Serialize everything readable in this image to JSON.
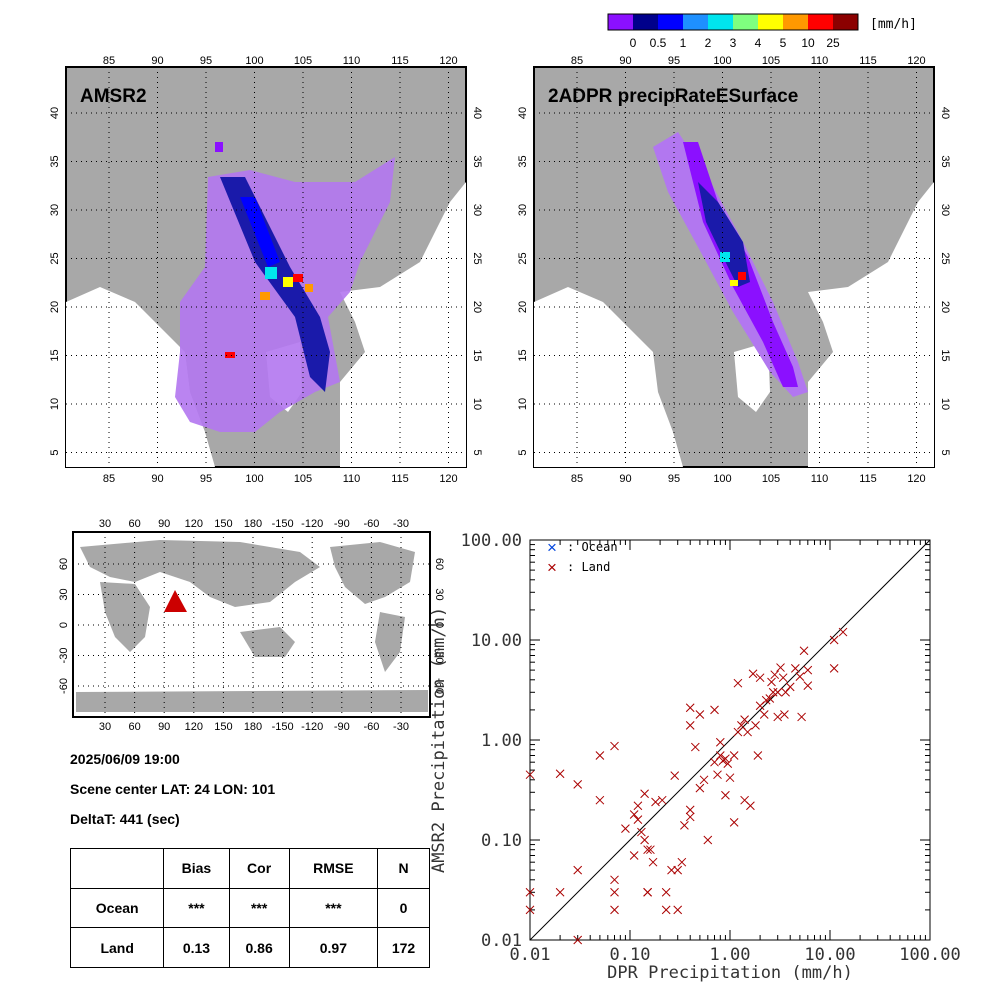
{
  "colorbar": {
    "unit": "[mm/h]",
    "labels": [
      "0",
      "0.5",
      "1",
      "2",
      "3",
      "4",
      "5",
      "10",
      "25"
    ],
    "colors": [
      "#8b10ff",
      "#00008b",
      "#0000ff",
      "#1e90ff",
      "#00e5ee",
      "#7fff7f",
      "#ffff00",
      "#ff9900",
      "#ff0000",
      "#8b0000"
    ]
  },
  "maps": [
    {
      "title": "AMSR2",
      "lon_ticks": [
        "85",
        "90",
        "95",
        "100",
        "105",
        "110",
        "115",
        "120"
      ],
      "lat_ticks": [
        "40",
        "35",
        "30",
        "25",
        "20",
        "15",
        "10",
        "5"
      ]
    },
    {
      "title": "2ADPR precipRateESurface",
      "lon_ticks": [
        "85",
        "90",
        "95",
        "100",
        "105",
        "110",
        "115",
        "120"
      ],
      "lat_ticks": [
        "40",
        "35",
        "30",
        "25",
        "20",
        "15",
        "10",
        "5"
      ]
    }
  ],
  "world_map": {
    "lon_ticks": [
      "30",
      "60",
      "90",
      "120",
      "150",
      "180",
      "-150",
      "-120",
      "-90",
      "-60",
      "-30"
    ],
    "lat_ticks": [
      "60",
      "30",
      "0",
      "-30",
      "-60"
    ],
    "marker_color": "#cc0000"
  },
  "info": {
    "datetime": "2025/06/09 19:00",
    "scene_center": "Scene center LAT: 24   LON: 101",
    "delta_t": "DeltaT:  441 (sec)"
  },
  "stats_table": {
    "headers": [
      "",
      "Bias",
      "Cor",
      "RMSE",
      "N"
    ],
    "rows": [
      [
        "Ocean",
        "***",
        "***",
        "***",
        "0"
      ],
      [
        "Land",
        "0.13",
        "0.86",
        "0.97",
        "172"
      ]
    ]
  },
  "chart_data": {
    "type": "scatter",
    "xscale": "log",
    "yscale": "log",
    "xlim": [
      0.01,
      100
    ],
    "ylim": [
      0.01,
      100
    ],
    "xlabel": "DPR Precipitation (mm/h)",
    "ylabel": "AMSR2 Precipitation (mm/h)",
    "x_ticks": [
      "0.01",
      "0.10",
      "1.00",
      "10.00",
      "100.00"
    ],
    "y_ticks": [
      "0.01",
      "0.10",
      "1.00",
      "10.00",
      "100.00"
    ],
    "legend": [
      {
        "marker": "×",
        "label": ": Ocean",
        "color": "#0044dd"
      },
      {
        "marker": "×",
        "label": ": Land",
        "color": "#aa0000"
      }
    ],
    "series": [
      {
        "name": "Land",
        "color": "#aa0000",
        "points": [
          [
            0.01,
            0.45
          ],
          [
            0.01,
            0.03
          ],
          [
            0.01,
            0.02
          ],
          [
            0.02,
            0.46
          ],
          [
            0.02,
            0.03
          ],
          [
            0.03,
            0.36
          ],
          [
            0.03,
            0.05
          ],
          [
            0.03,
            0.01
          ],
          [
            0.05,
            0.7
          ],
          [
            0.05,
            0.25
          ],
          [
            0.07,
            0.87
          ],
          [
            0.07,
            0.04
          ],
          [
            0.07,
            0.03
          ],
          [
            0.07,
            0.02
          ],
          [
            0.09,
            0.13
          ],
          [
            0.11,
            0.18
          ],
          [
            0.12,
            0.16
          ],
          [
            0.12,
            0.22
          ],
          [
            0.11,
            0.07
          ],
          [
            0.13,
            0.12
          ],
          [
            0.14,
            0.29
          ],
          [
            0.14,
            0.1
          ],
          [
            0.15,
            0.08
          ],
          [
            0.15,
            0.03
          ],
          [
            0.16,
            0.08
          ],
          [
            0.15,
            0.03
          ],
          [
            0.17,
            0.06
          ],
          [
            0.18,
            0.24
          ],
          [
            0.21,
            0.25
          ],
          [
            0.23,
            0.03
          ],
          [
            0.23,
            0.02
          ],
          [
            0.26,
            0.05
          ],
          [
            0.28,
            0.44
          ],
          [
            0.3,
            0.05
          ],
          [
            0.3,
            0.02
          ],
          [
            0.33,
            0.06
          ],
          [
            0.35,
            0.14
          ],
          [
            0.4,
            0.2
          ],
          [
            0.4,
            2.1
          ],
          [
            0.4,
            1.4
          ],
          [
            0.4,
            0.17
          ],
          [
            0.45,
            0.85
          ],
          [
            0.5,
            1.8
          ],
          [
            0.5,
            0.33
          ],
          [
            0.55,
            0.4
          ],
          [
            0.6,
            0.1
          ],
          [
            0.7,
            2.0
          ],
          [
            0.7,
            0.6
          ],
          [
            0.75,
            0.45
          ],
          [
            0.8,
            0.7
          ],
          [
            0.8,
            0.95
          ],
          [
            0.85,
            0.62
          ],
          [
            0.9,
            0.65
          ],
          [
            0.95,
            0.58
          ],
          [
            0.9,
            0.28
          ],
          [
            1.0,
            0.42
          ],
          [
            1.1,
            0.15
          ],
          [
            1.1,
            0.7
          ],
          [
            1.2,
            3.7
          ],
          [
            1.2,
            1.2
          ],
          [
            1.3,
            1.4
          ],
          [
            1.4,
            1.6
          ],
          [
            1.4,
            0.25
          ],
          [
            1.5,
            1.2
          ],
          [
            1.6,
            0.22
          ],
          [
            1.7,
            4.6
          ],
          [
            1.8,
            1.4
          ],
          [
            1.9,
            0.7
          ],
          [
            2.0,
            4.2
          ],
          [
            2.0,
            2.2
          ],
          [
            2.2,
            1.8
          ],
          [
            2.3,
            2.5
          ],
          [
            2.5,
            2.6
          ],
          [
            2.6,
            3.8
          ],
          [
            2.7,
            3.0
          ],
          [
            2.8,
            4.5
          ],
          [
            3.0,
            1.7
          ],
          [
            3.0,
            3.0
          ],
          [
            3.2,
            5.3
          ],
          [
            3.4,
            4.2
          ],
          [
            3.5,
            1.8
          ],
          [
            3.6,
            3.0
          ],
          [
            4.0,
            3.4
          ],
          [
            4.5,
            5.2
          ],
          [
            5.0,
            4.3
          ],
          [
            5.2,
            1.7
          ],
          [
            5.5,
            7.8
          ],
          [
            6.0,
            5.0
          ],
          [
            6.0,
            3.5
          ],
          [
            11.0,
            10.0
          ],
          [
            11.0,
            5.2
          ],
          [
            13.5,
            12.0
          ]
        ]
      }
    ]
  }
}
